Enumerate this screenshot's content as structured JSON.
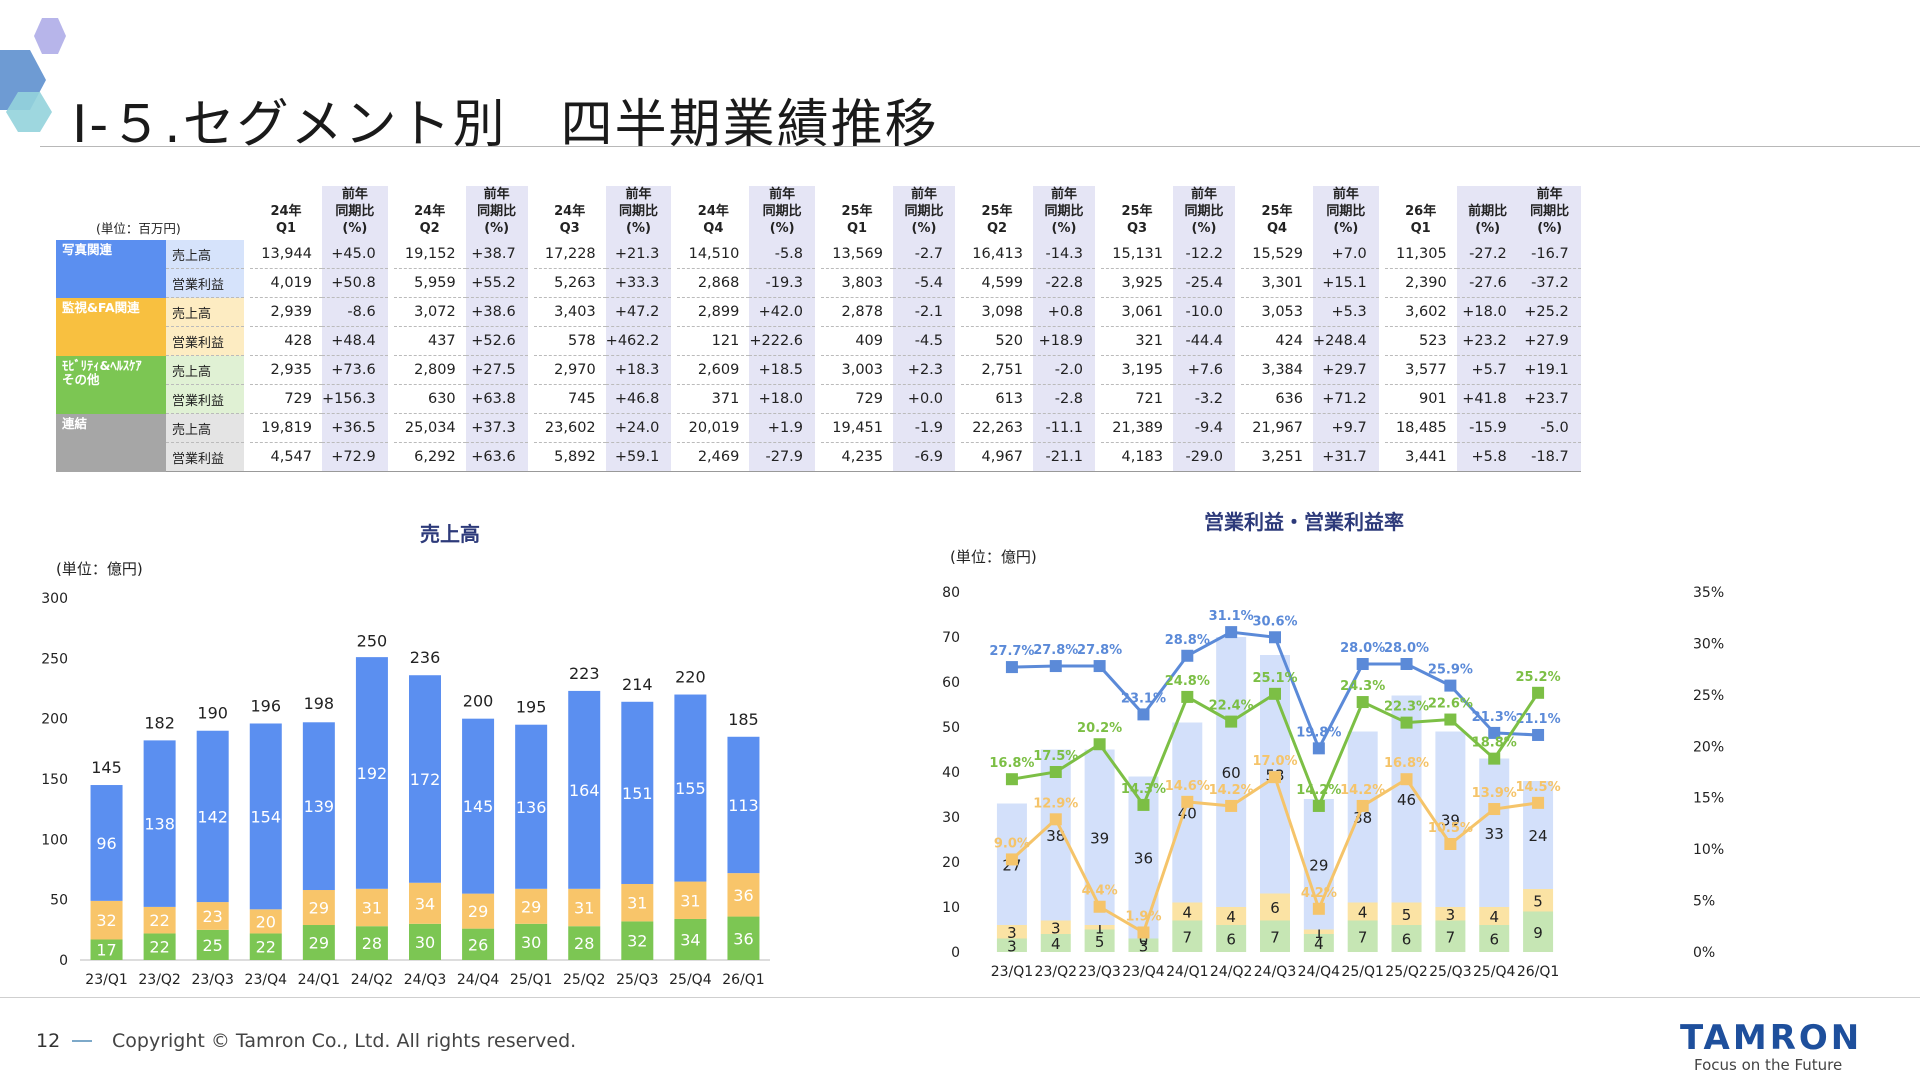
{
  "title": "Ⅰ-５.セグメント別　四半期業績推移",
  "table": {
    "unit": "(単位：百万円)",
    "headers": [
      {
        "period": "24年\nQ1",
        "yoy": "前年\n同期比\n(%)"
      },
      {
        "period": "24年\nQ2",
        "yoy": "前年\n同期比\n(%)"
      },
      {
        "period": "24年\nQ3",
        "yoy": "前年\n同期比\n(%)"
      },
      {
        "period": "24年\nQ4",
        "yoy": "前年\n同期比\n(%)"
      },
      {
        "period": "25年\nQ1",
        "yoy": "前年\n同期比\n(%)"
      },
      {
        "period": "25年\nQ2",
        "yoy": "前年\n同期比\n(%)"
      },
      {
        "period": "25年\nQ3",
        "yoy": "前年\n同期比\n(%)"
      },
      {
        "period": "25年\nQ4",
        "yoy": "前年\n同期比\n(%)"
      },
      {
        "period": "26年\nQ1",
        "yoy": "前期比\n(%)",
        "yoy2": "前年\n同期比\n(%)"
      }
    ],
    "segments": [
      {
        "name": "写真関連",
        "color": "#5b8ff0",
        "rows": [
          {
            "label": "売上高",
            "cells": [
              "13,944",
              "+45.0",
              "19,152",
              "+38.7",
              "17,228",
              "+21.3",
              "14,510",
              "-5.8",
              "13,569",
              "-2.7",
              "16,413",
              "-14.3",
              "15,131",
              "-12.2",
              "15,529",
              "+7.0",
              "11,305",
              "-27.2",
              "-16.7"
            ]
          },
          {
            "label": "営業利益",
            "cells": [
              "4,019",
              "+50.8",
              "5,959",
              "+55.2",
              "5,263",
              "+33.3",
              "2,868",
              "-19.3",
              "3,803",
              "-5.4",
              "4,599",
              "-22.8",
              "3,925",
              "-25.4",
              "3,301",
              "+15.1",
              "2,390",
              "-27.6",
              "-37.2"
            ]
          }
        ]
      },
      {
        "name": "監視&FA関連",
        "color": "#f8c040",
        "rows": [
          {
            "label": "売上高",
            "cells": [
              "2,939",
              "-8.6",
              "3,072",
              "+38.6",
              "3,403",
              "+47.2",
              "2,899",
              "+42.0",
              "2,878",
              "-2.1",
              "3,098",
              "+0.8",
              "3,061",
              "-10.0",
              "3,053",
              "+5.3",
              "3,602",
              "+18.0",
              "+25.2"
            ]
          },
          {
            "label": "営業利益",
            "cells": [
              "428",
              "+48.4",
              "437",
              "+52.6",
              "578",
              "+462.2",
              "121",
              "+222.6",
              "409",
              "-4.5",
              "520",
              "+18.9",
              "321",
              "-44.4",
              "424",
              "+248.4",
              "523",
              "+23.2",
              "+27.9"
            ]
          }
        ]
      },
      {
        "name": "ﾓﾋﾞﾘﾃｨ&ﾍﾙｽｹｱ\nその他",
        "color": "#7cc653",
        "rows": [
          {
            "label": "売上高",
            "cells": [
              "2,935",
              "+73.6",
              "2,809",
              "+27.5",
              "2,970",
              "+18.3",
              "2,609",
              "+18.5",
              "3,003",
              "+2.3",
              "2,751",
              "-2.0",
              "3,195",
              "+7.6",
              "3,384",
              "+29.7",
              "3,577",
              "+5.7",
              "+19.1"
            ]
          },
          {
            "label": "営業利益",
            "cells": [
              "729",
              "+156.3",
              "630",
              "+63.8",
              "745",
              "+46.8",
              "371",
              "+18.0",
              "729",
              "+0.0",
              "613",
              "-2.8",
              "721",
              "-3.2",
              "636",
              "+71.2",
              "901",
              "+41.8",
              "+23.7"
            ]
          }
        ]
      },
      {
        "name": "連結",
        "color": "#a6a6a6",
        "rows": [
          {
            "label": "売上高",
            "cells": [
              "19,819",
              "+36.5",
              "25,034",
              "+37.3",
              "23,602",
              "+24.0",
              "20,019",
              "+1.9",
              "19,451",
              "-1.9",
              "22,263",
              "-11.1",
              "21,389",
              "-9.4",
              "21,967",
              "+9.7",
              "18,485",
              "-15.9",
              "-5.0"
            ]
          },
          {
            "label": "営業利益",
            "cells": [
              "4,547",
              "+72.9",
              "6,292",
              "+63.6",
              "5,892",
              "+59.1",
              "2,469",
              "-27.9",
              "4,235",
              "-6.9",
              "4,967",
              "-21.1",
              "4,183",
              "-29.0",
              "3,251",
              "+31.7",
              "3,441",
              "+5.8",
              "-18.7"
            ]
          }
        ]
      }
    ]
  },
  "chart_data": [
    {
      "type": "bar",
      "title": "売上高",
      "unit_label": "(単位：億円)",
      "categories": [
        "23/Q1",
        "23/Q2",
        "23/Q3",
        "23/Q4",
        "24/Q1",
        "24/Q2",
        "24/Q3",
        "24/Q4",
        "25/Q1",
        "25/Q2",
        "25/Q3",
        "25/Q4",
        "26/Q1"
      ],
      "ylim": [
        0,
        300
      ],
      "yticks": [
        0,
        50,
        100,
        150,
        200,
        250,
        300
      ],
      "stacked": true,
      "series": [
        {
          "values": [
            17,
            22,
            25,
            22,
            29,
            28,
            30,
            26,
            30,
            28,
            32,
            34,
            36
          ],
          "color": "#7cc653"
        },
        {
          "values": [
            32,
            22,
            23,
            20,
            29,
            31,
            34,
            29,
            29,
            31,
            31,
            31,
            36
          ],
          "color": "#f8c56a"
        },
        {
          "values": [
            96,
            138,
            142,
            154,
            139,
            192,
            172,
            145,
            136,
            164,
            151,
            155,
            113
          ],
          "color": "#5b8ff0"
        }
      ],
      "totals": [
        145,
        182,
        190,
        196,
        198,
        250,
        236,
        200,
        195,
        223,
        214,
        220,
        185
      ]
    },
    {
      "type": "bar+line",
      "title": "営業利益・営業利益率",
      "unit_label": "(単位：億円)",
      "categories": [
        "23/Q1",
        "23/Q2",
        "23/Q3",
        "23/Q4",
        "24/Q1",
        "24/Q2",
        "24/Q3",
        "24/Q4",
        "25/Q1",
        "25/Q2",
        "25/Q3",
        "25/Q4",
        "26/Q1"
      ],
      "ylim": [
        0,
        80
      ],
      "yticks": [
        0,
        10,
        20,
        30,
        40,
        50,
        60,
        70,
        80
      ],
      "y2lim": [
        0,
        35
      ],
      "y2ticks": [
        "0%",
        "5%",
        "10%",
        "15%",
        "20%",
        "25%",
        "30%",
        "35%"
      ],
      "stacked": true,
      "bar_series": [
        {
          "values": [
            3,
            4,
            5,
            3,
            7,
            6,
            7,
            4,
            7,
            6,
            7,
            6,
            9
          ],
          "color": "#c6e6b4"
        },
        {
          "values": [
            3,
            3,
            1,
            0,
            4,
            4,
            6,
            1,
            4,
            5,
            3,
            4,
            5
          ],
          "color": "#fbe3a4"
        },
        {
          "values": [
            27,
            38,
            39,
            36,
            40,
            60,
            53,
            29,
            38,
            46,
            39,
            33,
            24
          ],
          "color": "#d3e0fa"
        }
      ],
      "line_series": [
        {
          "values": [
            27.7,
            27.8,
            27.8,
            23.1,
            28.8,
            31.1,
            30.6,
            19.8,
            28.0,
            28.0,
            25.9,
            21.3,
            21.1
          ],
          "labels": [
            "27.7%",
            "27.8%",
            "27.8%",
            "23.1%",
            "28.8%",
            "31.1%",
            "30.6%",
            "19.8%",
            "28.0%",
            "28.0%",
            "25.9%",
            "21.3%",
            "21.1%"
          ],
          "color": "#5b8ad8"
        },
        {
          "values": [
            16.8,
            17.5,
            20.2,
            14.3,
            24.8,
            22.4,
            25.1,
            14.2,
            24.3,
            22.3,
            22.6,
            18.8,
            25.2
          ],
          "labels": [
            "16.8%",
            "17.5%",
            "20.2%",
            "14.3%",
            "24.8%",
            "22.4%",
            "25.1%",
            "14.2%",
            "24.3%",
            "22.3%",
            "22.6%",
            "18.8%",
            "25.2%"
          ],
          "color": "#7cbf45"
        },
        {
          "values": [
            9.0,
            12.9,
            4.4,
            1.9,
            14.6,
            14.2,
            17.0,
            4.2,
            14.2,
            16.8,
            10.5,
            13.9,
            14.5
          ],
          "labels": [
            "9.0%",
            "12.9%",
            "4.4%",
            "1.9%",
            "14.6%",
            "14.2%",
            "17.0%",
            "4.2%",
            "14.2%",
            "16.8%",
            "10.5%",
            "13.9%",
            "14.5%"
          ],
          "color": "#f5c46a"
        }
      ]
    }
  ],
  "footer": {
    "page": "12",
    "copyright": "Copyright © Tamron Co., Ltd. All rights reserved.",
    "logo": "TAMRON",
    "tagline": "Focus on the Future"
  }
}
